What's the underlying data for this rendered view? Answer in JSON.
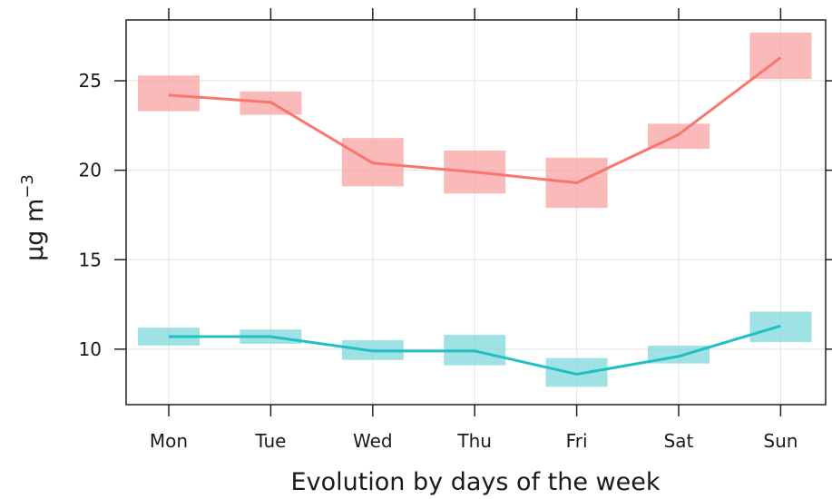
{
  "chart_data": {
    "type": "line",
    "xlabel": "Evolution by days of the week",
    "ylabel": "µg m",
    "ylabel_superscript": "−3",
    "categories": [
      "Mon",
      "Tue",
      "Wed",
      "Thu",
      "Fri",
      "Sat",
      "Sun"
    ],
    "ylim": [
      6.9,
      28.4
    ],
    "yticks": [
      10,
      15,
      20,
      25
    ],
    "grid": true,
    "series": [
      {
        "color": "#F8766D",
        "band_color": "#F8A3A3",
        "values": [
          24.2,
          23.8,
          20.4,
          19.9,
          19.3,
          22.0,
          26.3
        ],
        "lower": [
          23.3,
          23.1,
          19.1,
          18.7,
          17.9,
          21.2,
          25.1
        ],
        "upper": [
          25.3,
          24.4,
          21.8,
          21.1,
          20.7,
          22.6,
          27.7
        ]
      },
      {
        "color": "#1FBFC4",
        "band_color": "#7FD8DB",
        "values": [
          10.7,
          10.7,
          9.9,
          9.9,
          8.6,
          9.6,
          11.3
        ],
        "lower": [
          10.2,
          10.3,
          9.4,
          9.1,
          7.9,
          9.2,
          10.4
        ],
        "upper": [
          11.2,
          11.1,
          10.5,
          10.8,
          9.5,
          10.2,
          12.1
        ]
      }
    ]
  }
}
